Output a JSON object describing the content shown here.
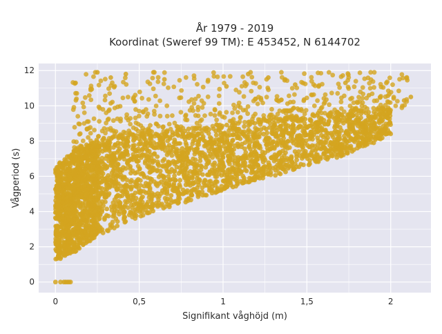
{
  "chart_data": {
    "type": "scatter",
    "title": [
      "År 1979 - 2019",
      "Koordinat (Sweref 99 TM): E 453452, N 6144702"
    ],
    "xlabel": "Signifikant våghöjd (m)",
    "ylabel": "Vågperiod (s)",
    "xlim": [
      -0.1,
      2.24
    ],
    "ylim": [
      -0.6,
      12.4
    ],
    "x_ticks": [
      0,
      0.5,
      1,
      1.5,
      2
    ],
    "x_tick_labels": [
      "0",
      "0,5",
      "1",
      "1,5",
      "2"
    ],
    "y_ticks": [
      0,
      2,
      4,
      6,
      8,
      10,
      12
    ],
    "y_tick_labels": [
      "0",
      "2",
      "4",
      "6",
      "8",
      "10",
      "12"
    ],
    "grid": true,
    "legend": "none",
    "colors": {
      "marker": "#d4a520",
      "plot_bg": "#e5e5f0",
      "grid": "#ffffff",
      "page_bg": "#ffffff"
    },
    "envelope": {
      "x": [
        0.0,
        0.1,
        0.2,
        0.3,
        0.4,
        0.5,
        0.6,
        0.7,
        0.8,
        0.9,
        1.0,
        1.1,
        1.2,
        1.3,
        1.4,
        1.5,
        1.6,
        1.7,
        1.8,
        1.9,
        2.0
      ],
      "y_lower": [
        1.2,
        1.6,
        2.3,
        2.8,
        3.3,
        3.7,
        4.0,
        4.3,
        4.6,
        4.9,
        5.2,
        5.5,
        5.8,
        6.0,
        6.3,
        6.6,
        6.9,
        7.1,
        7.5,
        7.9,
        8.4
      ],
      "y_upper": [
        6.6,
        7.4,
        7.9,
        8.1,
        8.3,
        8.4,
        8.5,
        8.6,
        8.7,
        8.8,
        8.9,
        9.0,
        9.1,
        9.2,
        9.3,
        9.4,
        9.5,
        9.6,
        9.7,
        9.8,
        9.8
      ]
    },
    "sparse_range": {
      "x": [
        0.1,
        2.1
      ],
      "y": [
        8.5,
        12
      ]
    },
    "zero_period_points": {
      "x": [
        0.0,
        0.03,
        0.05,
        0.06,
        0.07,
        0.08,
        0.09
      ],
      "y": 0
    },
    "notable_points": [
      {
        "x": 0.25,
        "y": 11.9
      },
      {
        "x": 0.33,
        "y": 11.6
      },
      {
        "x": 0.42,
        "y": 11.8
      },
      {
        "x": 0.12,
        "y": 11.3
      },
      {
        "x": 0.65,
        "y": 11.5
      },
      {
        "x": 1.02,
        "y": 11.1
      },
      {
        "x": 1.15,
        "y": 11.8
      },
      {
        "x": 1.27,
        "y": 11.6
      },
      {
        "x": 1.37,
        "y": 11.5
      },
      {
        "x": 1.43,
        "y": 11.2
      },
      {
        "x": 1.57,
        "y": 11.1
      },
      {
        "x": 1.73,
        "y": 11.3
      },
      {
        "x": 1.87,
        "y": 10.6
      },
      {
        "x": 2.08,
        "y": 10.3
      },
      {
        "x": 2.12,
        "y": 10.5
      }
    ]
  }
}
